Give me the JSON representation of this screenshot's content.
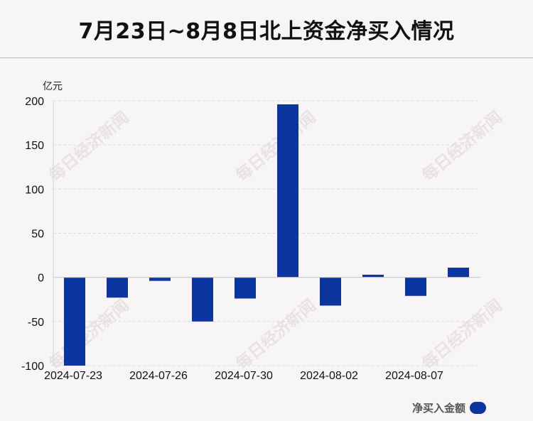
{
  "header": {
    "title": "7月23日~8月8日北上资金净买入情况"
  },
  "legend": {
    "label": "净买入金额",
    "color": "#0d35a0"
  },
  "chart_data": {
    "type": "bar",
    "title": "7月23日~8月8日北上资金净买入情况",
    "ylabel": "亿元",
    "ylim": [
      -100,
      200
    ],
    "yticks": [
      200,
      150,
      100,
      50,
      0,
      -50,
      -100
    ],
    "x_tick_labels": [
      "2024-07-23",
      "2024-07-26",
      "2024-07-30",
      "2024-08-02",
      "2024-08-07"
    ],
    "x_tick_indices": [
      0,
      2,
      4,
      6,
      8
    ],
    "grid": true,
    "legend_position": "bottom-right",
    "series": [
      {
        "name": "净买入金额",
        "color": "#0d35a0",
        "values": [
          -100,
          -23,
          -4,
          -50,
          -24,
          196,
          -32,
          3,
          -21,
          11
        ]
      }
    ]
  },
  "watermark": "每日经济新闻"
}
